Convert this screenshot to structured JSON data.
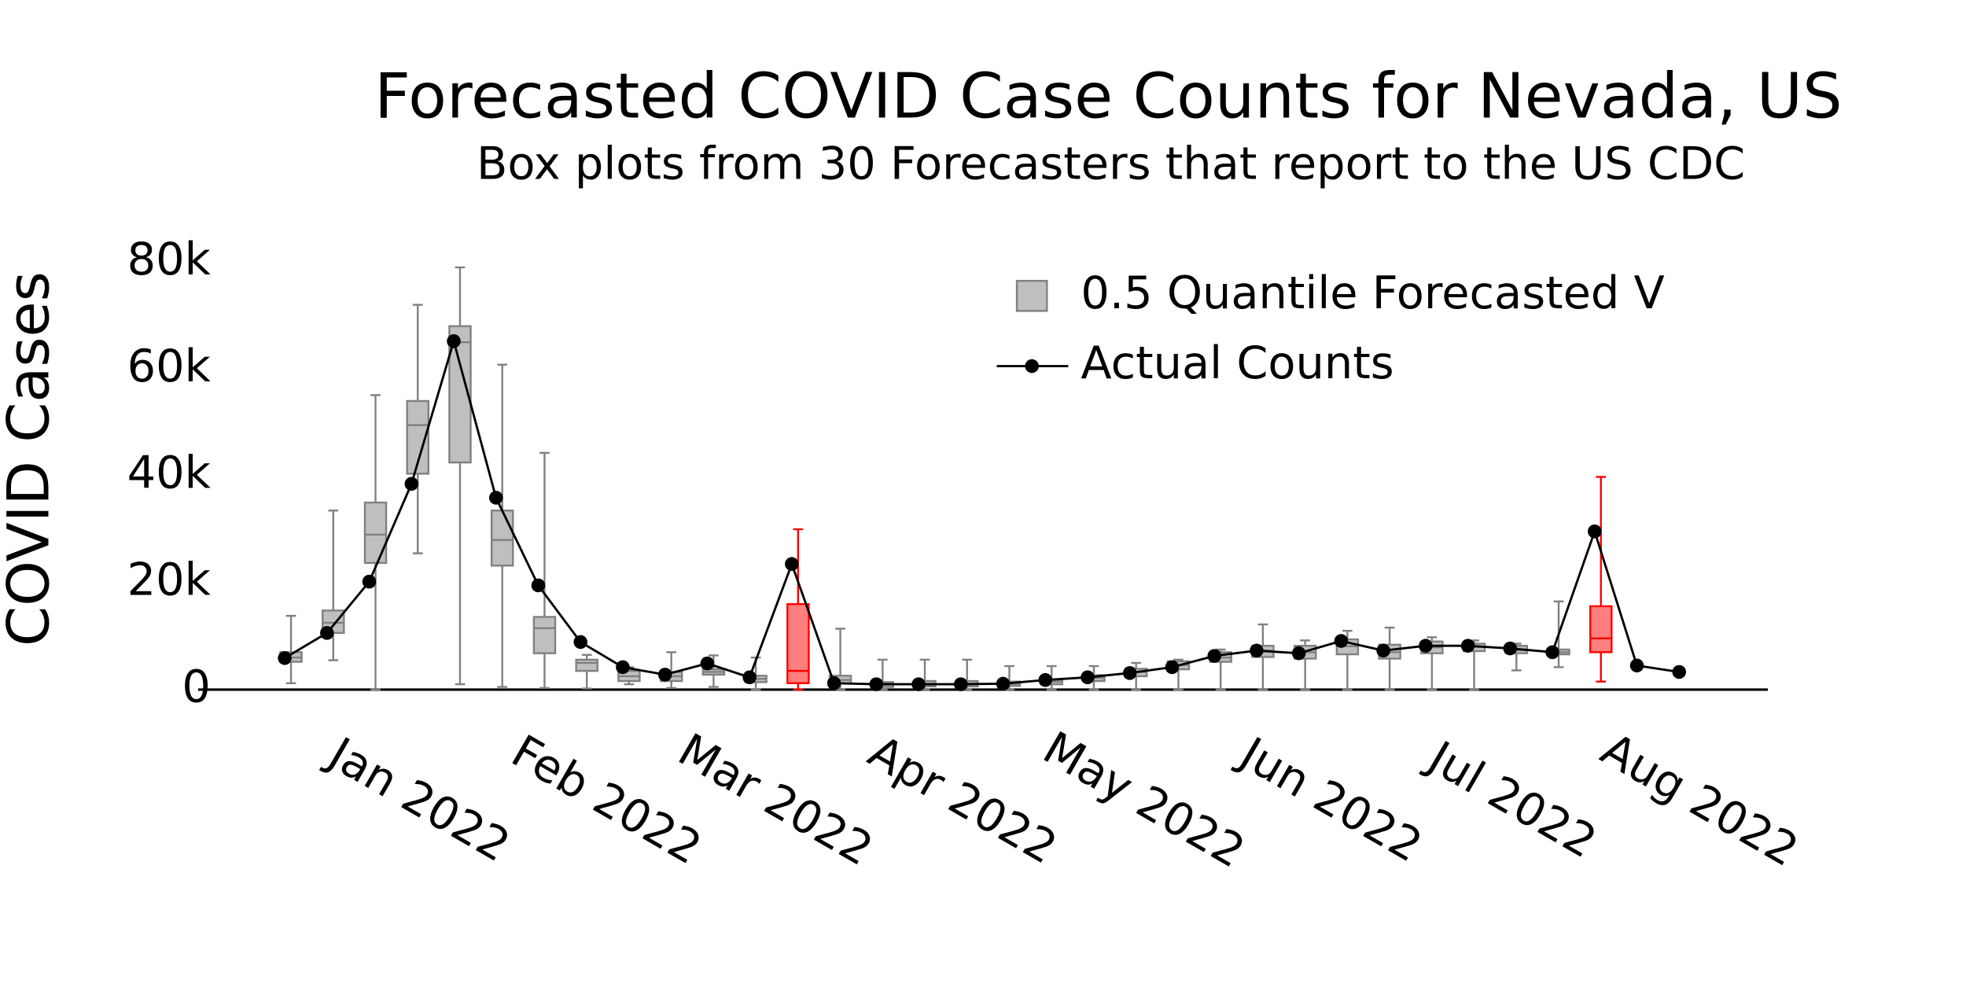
{
  "chart_data": {
    "type": "box",
    "title": "Forecasted COVID Case Counts for Nevada, US",
    "subtitle": "Box plots from 30 Forecasters that report to the US CDC",
    "y_label": "COVID Cases",
    "xlim": [
      -2.05,
      35.1
    ],
    "xticks": [
      {
        "value": 3.15,
        "label": "Jan 2022"
      },
      {
        "value": 7.58,
        "label": "Feb 2022"
      },
      {
        "value": 11.58,
        "label": "Mar 2022"
      },
      {
        "value": 16.01,
        "label": "Apr 2022"
      },
      {
        "value": 20.3,
        "label": "May 2022"
      },
      {
        "value": 24.73,
        "label": "Jun 2022"
      },
      {
        "value": 29.02,
        "label": "Jul 2022"
      },
      {
        "value": 33.45,
        "label": "Aug 2022"
      }
    ],
    "ylim": [
      0,
      80000
    ],
    "yticks": [
      0,
      {
        "value": 20000,
        "label": "20k"
      },
      {
        "value": 40000,
        "label": "40k"
      },
      {
        "value": 60000,
        "label": "60k"
      },
      {
        "value": 80000,
        "label": "80k"
      }
    ],
    "legend": "upper right",
    "series": [
      {
        "name": "0.5 Quantile Forecasted V",
        "type": "box",
        "x": [
          0,
          1,
          2,
          3,
          4,
          5,
          6,
          7,
          8,
          9,
          10,
          11,
          12,
          13,
          14,
          15,
          16,
          17,
          18,
          19,
          20,
          21,
          22,
          23,
          24,
          25,
          26,
          27,
          28,
          29,
          30,
          31
        ],
        "whisker_low": [
          1200,
          5500,
          0,
          25500,
          1000,
          500,
          300,
          200,
          1000,
          300,
          500,
          0,
          0,
          0,
          0,
          0,
          0,
          0,
          0,
          0,
          0,
          0,
          0,
          0,
          0,
          0,
          0,
          0,
          0,
          3600,
          4200,
          1500
        ],
        "q1": [
          5200,
          10600,
          23700,
          40400,
          42500,
          23200,
          6800,
          3500,
          1600,
          1600,
          2800,
          1400,
          1200,
          1200,
          500,
          600,
          600,
          700,
          1000,
          1600,
          2500,
          3800,
          5200,
          6100,
          5800,
          6600,
          5800,
          6800,
          7200,
          6800,
          6600,
          7000
        ],
        "median": [
          6000,
          12500,
          29000,
          49500,
          65000,
          28000,
          11500,
          5000,
          2500,
          2500,
          3300,
          2000,
          3500,
          1800,
          1000,
          1100,
          1100,
          1100,
          1500,
          2200,
          3300,
          4600,
          6000,
          7300,
          7000,
          8100,
          7000,
          7900,
          8000,
          7400,
          7000,
          9600
        ],
        "q3": [
          7000,
          14800,
          35000,
          54000,
          68000,
          33500,
          13600,
          5600,
          3500,
          3300,
          3800,
          2600,
          16000,
          2600,
          1400,
          1600,
          1600,
          1500,
          1900,
          2700,
          3900,
          5300,
          7000,
          8200,
          8200,
          9400,
          8400,
          9000,
          8600,
          8200,
          7500,
          15600
        ],
        "whisker_high": [
          13800,
          33500,
          55100,
          72000,
          79000,
          60800,
          44300,
          6500,
          4200,
          7000,
          6400,
          6000,
          30000,
          11400,
          5600,
          5600,
          5600,
          4400,
          4400,
          4400,
          5000,
          5600,
          7500,
          12200,
          9200,
          11000,
          11600,
          9800,
          9200,
          8600,
          16500,
          39800
        ],
        "colors": [
          "#808080",
          "#808080",
          "#808080",
          "#808080",
          "#808080",
          "#808080",
          "#808080",
          "#808080",
          "#808080",
          "#808080",
          "#808080",
          "#808080",
          "#ff0000",
          "#808080",
          "#808080",
          "#808080",
          "#808080",
          "#808080",
          "#808080",
          "#808080",
          "#808080",
          "#808080",
          "#808080",
          "#808080",
          "#808080",
          "#808080",
          "#808080",
          "#808080",
          "#808080",
          "#808080",
          "#808080",
          "#ff0000"
        ]
      },
      {
        "name": "Actual Counts",
        "type": "line",
        "color": "#000000",
        "x": [
          0,
          1,
          2,
          3,
          4,
          5,
          6,
          7,
          8,
          9,
          10,
          11,
          12,
          13,
          14,
          15,
          16,
          17,
          18,
          19,
          20,
          21,
          22,
          23,
          24,
          25,
          26,
          27,
          28,
          29,
          30,
          31,
          32,
          33
        ],
        "values": [
          5900,
          10600,
          20200,
          38500,
          65200,
          35900,
          19500,
          8900,
          4200,
          2800,
          4900,
          2300,
          23500,
          1200,
          1000,
          1000,
          1000,
          1100,
          1800,
          2300,
          3100,
          4200,
          6300,
          7300,
          6800,
          9100,
          7300,
          8200,
          8200,
          7700,
          7000,
          29600,
          4500,
          3300
        ]
      }
    ]
  }
}
